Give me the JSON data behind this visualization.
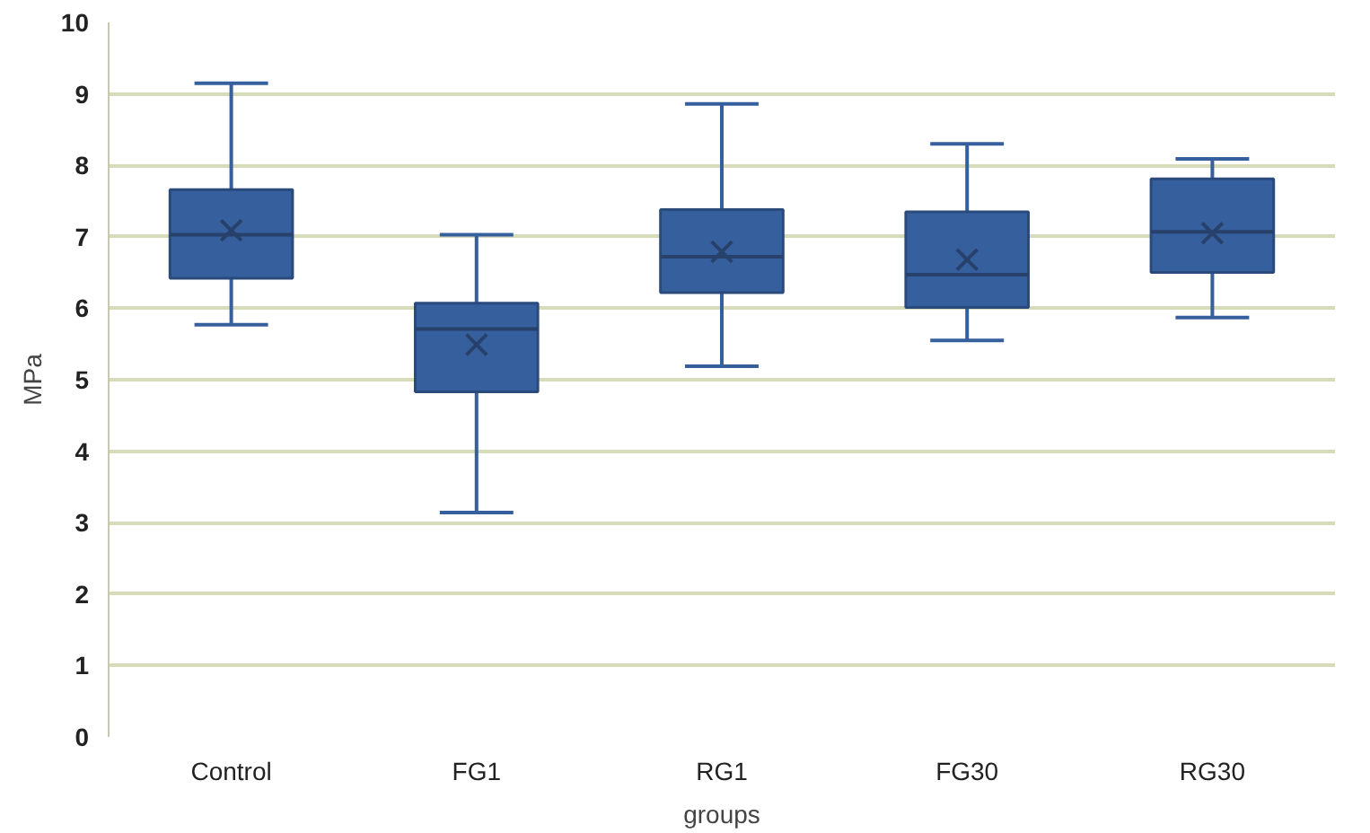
{
  "chart_data": {
    "type": "box",
    "xlabel": "groups",
    "ylabel": "MPa",
    "categories": [
      "Control",
      "FG1",
      "RG1",
      "FG30",
      "RG30"
    ],
    "series": [
      {
        "color": "#365f9e",
        "boxes": [
          {
            "low": 5.77,
            "q1": 6.42,
            "median": 7.03,
            "q3": 7.66,
            "high": 9.15,
            "mean": 7.09
          },
          {
            "low": 3.14,
            "q1": 4.83,
            "median": 5.71,
            "q3": 6.07,
            "high": 7.03,
            "mean": 5.49
          },
          {
            "low": 5.19,
            "q1": 6.22,
            "median": 6.72,
            "q3": 7.38,
            "high": 8.86,
            "mean": 6.79
          },
          {
            "low": 5.55,
            "q1": 6.01,
            "median": 6.47,
            "q3": 7.35,
            "high": 8.3,
            "mean": 6.68
          },
          {
            "low": 5.87,
            "q1": 6.5,
            "median": 7.07,
            "q3": 7.81,
            "high": 8.09,
            "mean": 7.05
          }
        ]
      }
    ],
    "ylim": [
      0,
      10
    ],
    "yticks": [
      0,
      1,
      2,
      3,
      4,
      5,
      6,
      7,
      8,
      9,
      10
    ],
    "grid": "y",
    "marker": "cross"
  }
}
